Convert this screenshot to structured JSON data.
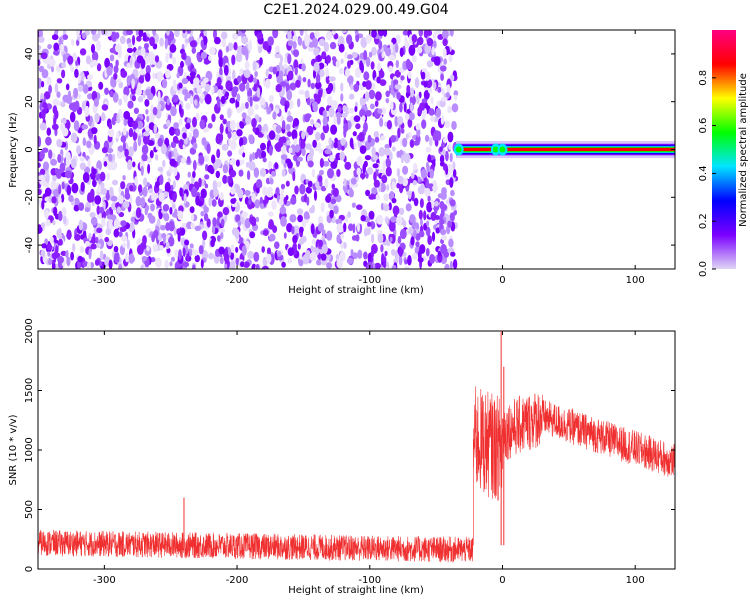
{
  "title": "C2E1.2024.029.00.49.G04",
  "chart_data": [
    {
      "type": "heatmap",
      "xlabel": "Height of straight line (km)",
      "ylabel": "Frequency (Hz)",
      "xlim": [
        -350,
        130
      ],
      "ylim": [
        -50,
        50
      ],
      "xticks": [
        -300,
        -200,
        -100,
        0,
        100
      ],
      "yticks": [
        -40,
        -20,
        0,
        20,
        40
      ],
      "noise_region_x": [
        -350,
        -35
      ],
      "signal_band": {
        "x": [
          -35,
          130
        ],
        "freq": 0,
        "hz_halfwidth": 2
      },
      "colorbar": {
        "label": "Normalized spectral amplitude",
        "ticks": [
          0.0,
          0.2,
          0.4,
          0.6,
          0.8
        ],
        "range": [
          0,
          1
        ],
        "colors": [
          "#e0d6f5",
          "#7a00ff",
          "#0000ff",
          "#00e5ff",
          "#00ff00",
          "#ffff00",
          "#ff0000",
          "#ff0080"
        ]
      },
      "grid": false
    },
    {
      "type": "line",
      "xlabel": "Height of straight line (km)",
      "ylabel": "SNR (10 * v/v)",
      "xlim": [
        -350,
        130
      ],
      "ylim": [
        0,
        2000
      ],
      "xticks": [
        -300,
        -200,
        -100,
        0,
        100
      ],
      "yticks": [
        0,
        500,
        1000,
        1500,
        2000
      ],
      "color": "#f03030",
      "segments": [
        {
          "x": [
            -350,
            -22
          ],
          "mean": [
            220,
            160
          ],
          "spread": 110
        },
        {
          "x": [
            -22,
            0
          ],
          "mean": [
            1100,
            1000
          ],
          "spread": 450
        },
        {
          "x": [
            0,
            30
          ],
          "mean": [
            1150,
            1280
          ],
          "spread": 250
        },
        {
          "x": [
            30,
            130
          ],
          "mean": [
            1280,
            900
          ],
          "spread": 150
        }
      ],
      "spikes": [
        {
          "x": -1,
          "y": 2000
        },
        {
          "x": 1,
          "y": 1700
        },
        {
          "x": -240,
          "y": 600
        }
      ],
      "grid": false
    }
  ]
}
